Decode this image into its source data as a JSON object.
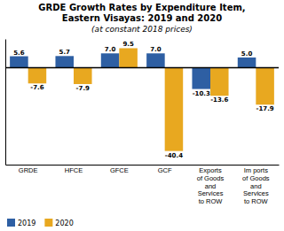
{
  "chart_data": {
    "type": "bar",
    "title": "GRDE Growth Rates by Expenditure Item,\nEastern Visayas: 2019 and 2020",
    "subtitle": "(at constant 2018 prices)",
    "categories": [
      "GRDE",
      "HFCE",
      "GFCE",
      "GCF",
      "Exports\nof Goods\nand\nServices\nto ROW",
      "Im ports\nof Goods\nand\nServices\nto ROW"
    ],
    "series": [
      {
        "name": "2019",
        "color": "#2E5FA3",
        "values": [
          5.6,
          5.7,
          7.0,
          7.0,
          -10.3,
          5.0
        ],
        "value_labels": [
          "5.6",
          "5.7",
          "7.0",
          "7.0",
          "-10.3",
          "5.0"
        ]
      },
      {
        "name": "2020",
        "color": "#E8A820",
        "values": [
          -7.6,
          -7.9,
          9.5,
          -40.4,
          -13.6,
          -17.9
        ],
        "value_labels": [
          "-7.6",
          "-7.9",
          "9.5",
          "-40.4",
          "-13.6",
          "-17.9"
        ]
      }
    ],
    "ylim": [
      -47,
      14
    ],
    "data_labels": true,
    "tick_labels": "x",
    "legend": "lower left",
    "grid": false
  }
}
